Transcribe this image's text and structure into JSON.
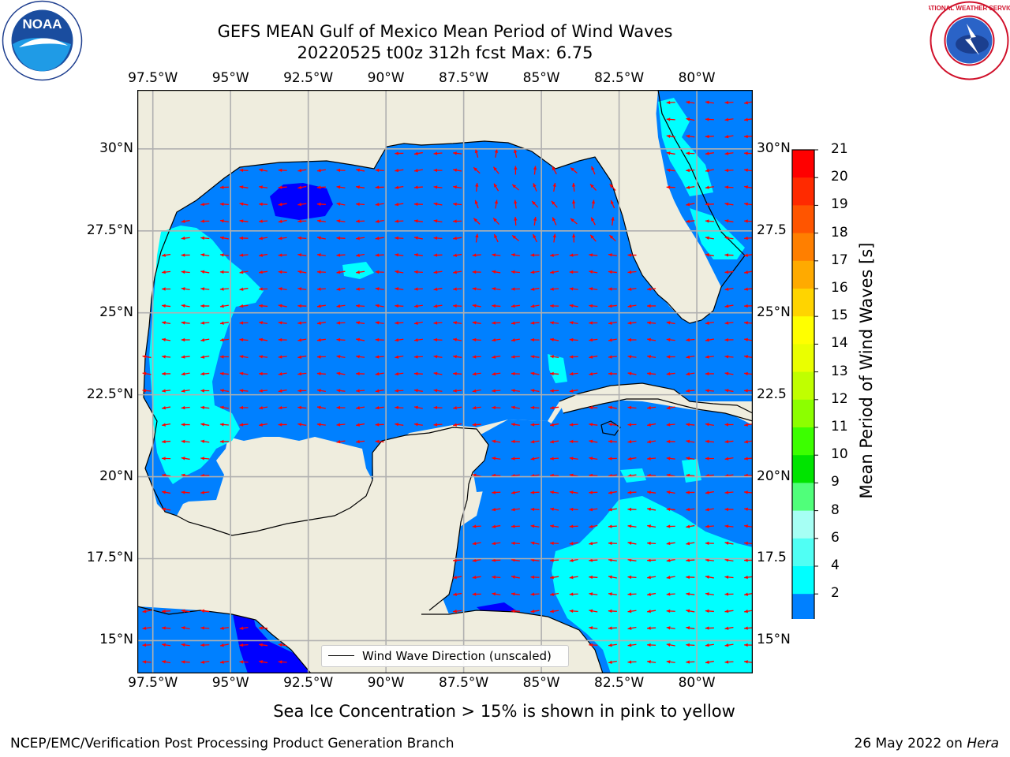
{
  "title": {
    "line1": "GEFS MEAN Gulf of Mexico Mean Period of Wind Waves",
    "line2": "20220525 t00z 312h fcst   Max: 6.75"
  },
  "logos": {
    "left": {
      "icon": "noaa-logo",
      "text": "NOAA"
    },
    "right": {
      "icon": "nws-logo",
      "text": "NATIONAL WEATHER SERVICE"
    }
  },
  "map": {
    "lon_range": [
      -98.0,
      -78.2
    ],
    "lat_range": [
      14.0,
      31.8
    ],
    "lon_ticks": [
      "97.5°W",
      "95°W",
      "92.5°W",
      "90°W",
      "87.5°W",
      "85°W",
      "82.5°W",
      "80°W"
    ],
    "lat_ticks": [
      "30°N",
      "27.5°N",
      "25°N",
      "22.5°N",
      "20°N",
      "17.5°N",
      "15°N"
    ],
    "lat_ticks_right": [
      "30°N",
      "27.5",
      "25°N",
      "22.5",
      "20°N",
      "17.5",
      "15°N"
    ],
    "legend_label": "Wind Wave Direction (unscaled)",
    "colors": {
      "land": "#efedde",
      "coast": "#000000",
      "grid": "#b0b0b0",
      "arrow": "#ff0000"
    }
  },
  "colorbar": {
    "label": "Mean Period of Wind Waves [s]",
    "ticks": [
      "21",
      "20",
      "19",
      "18",
      "17",
      "16",
      "15",
      "14",
      "13",
      "12",
      "11",
      "10",
      "9",
      "8",
      "6",
      "4",
      "2"
    ],
    "colors": [
      "#ff0000",
      "#ff2a00",
      "#ff5500",
      "#ff7f00",
      "#ffaa00",
      "#ffd400",
      "#ffff00",
      "#eaff00",
      "#c0ff00",
      "#8cff00",
      "#3cff00",
      "#00e400",
      "#50ff7a",
      "#a6fff4",
      "#50fff4",
      "#00ffff",
      "#0080ff"
    ],
    "extend_color": "#0000ff"
  },
  "ice_note": "Sea Ice Concentration > 15% is shown in pink to yellow",
  "footer": {
    "left": "NCEP/EMC/Verification Post Processing Product Generation Branch",
    "right_date": "26 May 2022 on ",
    "right_host": "Hera"
  }
}
